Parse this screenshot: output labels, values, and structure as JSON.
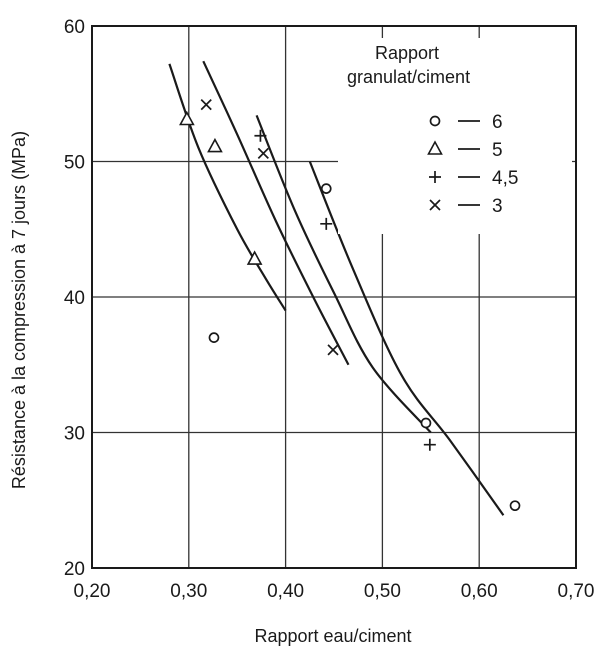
{
  "chart_data": {
    "type": "scatter",
    "title": "",
    "xlabel": "Rapport eau/ciment",
    "ylabel": "Résistance à la compression à 7 jours (MPa)",
    "xlim": [
      0.2,
      0.7
    ],
    "ylim": [
      20,
      60
    ],
    "xticks": [
      "0,20",
      "0,30",
      "0,40",
      "0,50",
      "0,60",
      "0,70"
    ],
    "yticks": [
      "20",
      "30",
      "40",
      "50",
      "60"
    ],
    "xtick_values": [
      0.2,
      0.3,
      0.4,
      0.5,
      0.6,
      0.7
    ],
    "ytick_values": [
      20,
      30,
      40,
      50,
      60
    ],
    "grid": true,
    "legend": {
      "title_line1": "Rapport",
      "title_line2": "granulat/ciment",
      "placement": "top-right"
    },
    "series": [
      {
        "label": "6",
        "marker": "circle",
        "points": [
          [
            0.326,
            37.0
          ],
          [
            0.442,
            48.0
          ],
          [
            0.545,
            30.7
          ],
          [
            0.637,
            24.6
          ]
        ],
        "curve": [
          [
            0.425,
            50.0
          ],
          [
            0.47,
            42.0
          ],
          [
            0.52,
            34.2
          ],
          [
            0.57,
            29.4
          ],
          [
            0.625,
            23.9
          ]
        ]
      },
      {
        "label": "5",
        "marker": "triangle",
        "points": [
          [
            0.298,
            53.1
          ],
          [
            0.327,
            51.1
          ],
          [
            0.368,
            42.8
          ]
        ],
        "curve": [
          [
            0.28,
            57.2
          ],
          [
            0.31,
            51.0
          ],
          [
            0.35,
            45.0
          ],
          [
            0.38,
            41.3
          ],
          [
            0.4,
            39.0
          ]
        ]
      },
      {
        "label": "4,5",
        "marker": "plus",
        "points": [
          [
            0.374,
            51.9
          ],
          [
            0.442,
            45.4
          ],
          [
            0.549,
            29.1
          ]
        ],
        "curve": [
          [
            0.37,
            53.4
          ],
          [
            0.41,
            46.3
          ],
          [
            0.45,
            40.3
          ],
          [
            0.49,
            34.8
          ],
          [
            0.55,
            30.0
          ]
        ]
      },
      {
        "label": "3",
        "marker": "cross",
        "points": [
          [
            0.318,
            54.2
          ],
          [
            0.377,
            50.6
          ],
          [
            0.449,
            36.1
          ]
        ],
        "curve": [
          [
            0.315,
            57.4
          ],
          [
            0.35,
            52.0
          ],
          [
            0.39,
            45.6
          ],
          [
            0.43,
            39.8
          ],
          [
            0.465,
            35.0
          ]
        ]
      }
    ]
  }
}
